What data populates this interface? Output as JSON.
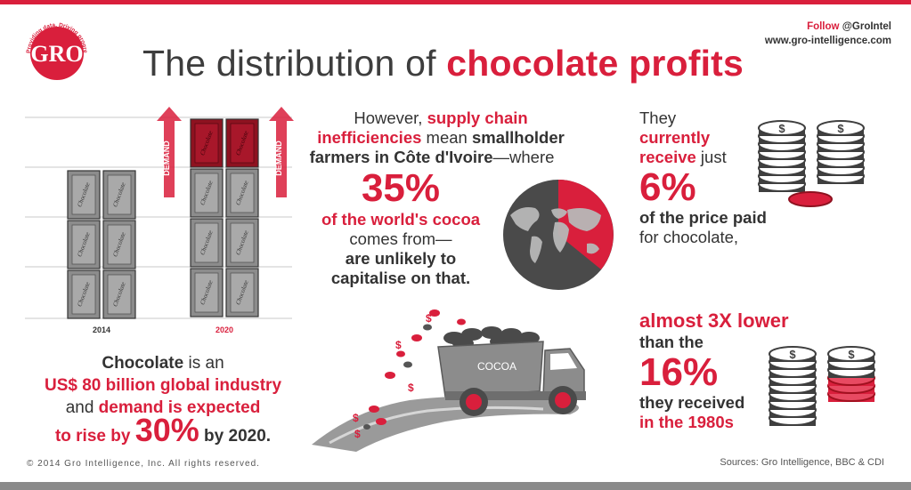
{
  "brand": {
    "logo_text": "GRO",
    "logo_tagline": "Providing data. Driving progress."
  },
  "follow": {
    "follow_label": "Follow",
    "handle": "@GroIntel",
    "website": "www.gro-intelligence.com"
  },
  "title": {
    "part1": "The distribution of ",
    "part2": "chocolate profits"
  },
  "chart": {
    "bar_label": "Chocolate",
    "demand_label": "DEMAND",
    "years": [
      "2014",
      "2020"
    ]
  },
  "left_caption": {
    "l1a": "Chocolate",
    "l1b": " is an",
    "l2": "US$ 80 billion global industry",
    "l3a": "and ",
    "l3b": "demand is expected",
    "l4a": "to rise by ",
    "l4b": "30%",
    "l4c": " by 2020."
  },
  "middle": {
    "l1a": "However, ",
    "l1b": "supply chain",
    "l2a": "inefficiencies",
    "l2b": " mean ",
    "l2c": "smallholder",
    "l3a": "farmers in Côte d'Ivoire",
    "l3b": "—where",
    "big": "35%",
    "l4": "of the world's cocoa",
    "l5": "comes from—",
    "l6": "are unlikely to",
    "l7": "capitalise on that."
  },
  "right_top": {
    "l1": "They",
    "l2": "currently",
    "l3a": "receive",
    "l3b": " just",
    "big": "6%",
    "l4": "of the price paid",
    "l5": "for chocolate,"
  },
  "right_bottom": {
    "l1": "almost 3X lower",
    "l2": "than the",
    "big": "16%",
    "l3": "they received",
    "l4": "in the 1980s"
  },
  "truck": {
    "cargo_label": "COCOA"
  },
  "footer": {
    "copyright": "© 2014 Gro Intelligence, Inc. All rights reserved.",
    "sources": "Sources: Gro Intelligence, BBC & CDI"
  },
  "colors": {
    "accent_red": "#d91f3c",
    "dark_gray": "#3d3d3d",
    "bar_gray": "#8c8c8c"
  }
}
